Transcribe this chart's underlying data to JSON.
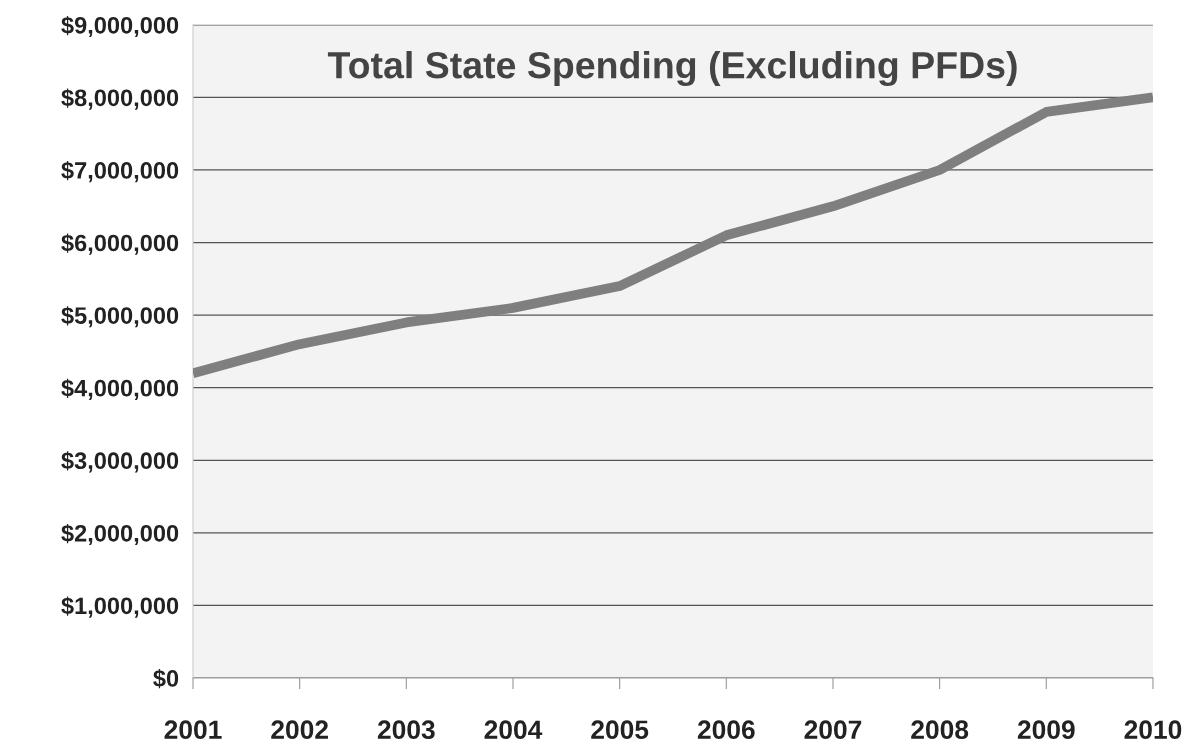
{
  "chart_data": {
    "type": "line",
    "title": "Total State Spending (Excluding PFDs)",
    "categories": [
      "2001",
      "2002",
      "2003",
      "2004",
      "2005",
      "2006",
      "2007",
      "2008",
      "2009",
      "2010"
    ],
    "series": [
      {
        "color": "#7f7f7f",
        "values": [
          4200000,
          4600000,
          4900000,
          5100000,
          5400000,
          6100000,
          6500000,
          7000000,
          7800000,
          8000000
        ]
      }
    ],
    "ylim": [
      0,
      9000000
    ],
    "yticks": [
      {
        "value": 0,
        "label": "$0"
      },
      {
        "value": 1000000,
        "label": "$1,000,000"
      },
      {
        "value": 2000000,
        "label": "$2,000,000"
      },
      {
        "value": 3000000,
        "label": "$3,000,000"
      },
      {
        "value": 4000000,
        "label": "$4,000,000"
      },
      {
        "value": 5000000,
        "label": "$5,000,000"
      },
      {
        "value": 6000000,
        "label": "$6,000,000"
      },
      {
        "value": 7000000,
        "label": "$7,000,000"
      },
      {
        "value": 8000000,
        "label": "$8,000,000"
      },
      {
        "value": 9000000,
        "label": "$9,000,000"
      }
    ],
    "grid": "y",
    "marker": "none",
    "line_style": "solid"
  }
}
